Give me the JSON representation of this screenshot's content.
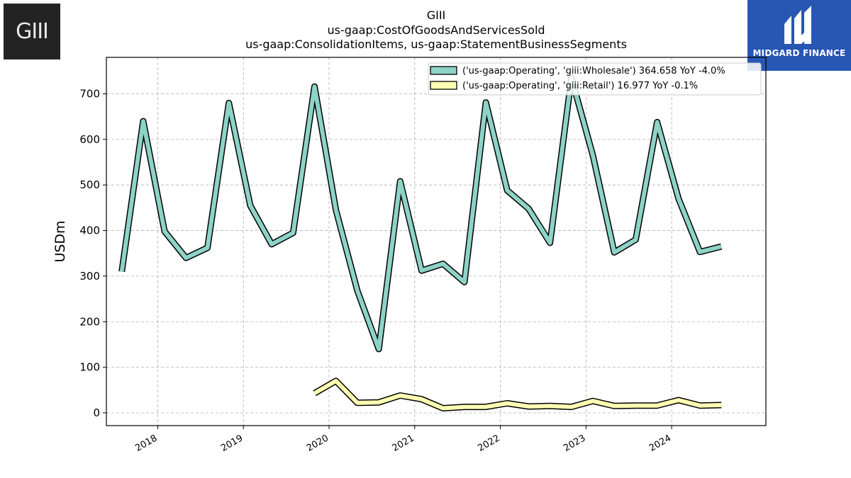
{
  "logos": {
    "company_text": "GIII",
    "brand_text": "MIDGARD FINANCE"
  },
  "chart_data": {
    "type": "line",
    "title_lines": [
      "GIII",
      "us-gaap:CostOfGoodsAndServicesSold",
      "us-gaap:ConsolidationItems, us-gaap:StatementBusinessSegments"
    ],
    "xlabel": "",
    "ylabel": "USDm",
    "xlim": [
      2017.4,
      2025.1
    ],
    "ylim": [
      -28,
      780
    ],
    "yticks": [
      0,
      100,
      200,
      300,
      400,
      500,
      600,
      700
    ],
    "xticks": [
      2018,
      2019,
      2020,
      2021,
      2022,
      2023,
      2024
    ],
    "xtick_labels": [
      "2018",
      "2019",
      "2020",
      "2021",
      "2022",
      "2023",
      "2024"
    ],
    "grid": true,
    "legend_position": "top-right",
    "series": [
      {
        "name": "('us-gaap:Operating', 'giii:Wholesale') 364.658 YoY -4.0%",
        "color": "#8dd3c7",
        "x": [
          2017.58,
          2017.83,
          2018.08,
          2018.33,
          2018.58,
          2018.83,
          2019.08,
          2019.33,
          2019.58,
          2019.83,
          2020.08,
          2020.33,
          2020.58,
          2020.83,
          2021.08,
          2021.33,
          2021.58,
          2021.83,
          2022.08,
          2022.33,
          2022.58,
          2022.83,
          2023.08,
          2023.33,
          2023.58,
          2023.83,
          2024.08,
          2024.33,
          2024.58
        ],
        "values": [
          310,
          640,
          398,
          340,
          362,
          680,
          455,
          370,
          395,
          716,
          445,
          268,
          140,
          508,
          312,
          327,
          287,
          681,
          488,
          448,
          373,
          735,
          565,
          352,
          380,
          638,
          470,
          353,
          365
        ]
      },
      {
        "name": "('us-gaap:Operating', 'giii:Retail') 16.977 YoY -0.1%",
        "color": "#ffffb3",
        "x": [
          2019.83,
          2020.08,
          2020.33,
          2020.58,
          2020.83,
          2021.08,
          2021.33,
          2021.58,
          2021.83,
          2022.08,
          2022.33,
          2022.58,
          2022.83,
          2023.08,
          2023.33,
          2023.58,
          2023.83,
          2024.08,
          2024.33,
          2024.58
        ],
        "values": [
          43,
          70,
          22,
          23,
          38,
          30,
          10,
          13,
          13,
          21,
          14,
          15,
          13,
          26,
          15,
          16,
          16,
          28,
          16,
          17
        ]
      }
    ]
  }
}
